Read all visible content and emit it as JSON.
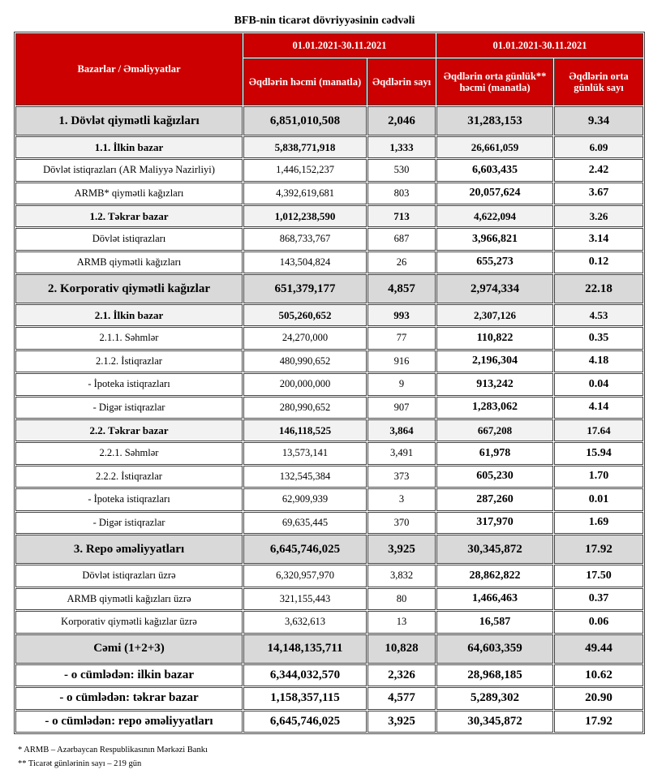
{
  "title": "BFB-nin ticarət dövriyyəsinin cədvəli",
  "header": {
    "corner": "Bazarlar / Əməliyyatlar",
    "period1": "01.01.2021-30.11.2021",
    "period2": "01.01.2021-30.11.2021",
    "columns": [
      "Əqdlərin həcmi (manatla)",
      "Əqdlərin sayı",
      "Əqdlərin orta günlük** həcmi (manatla)",
      "Əqdlərin orta günlük sayı"
    ]
  },
  "rows": [
    [
      "1. Dövlət qiymətli kağızları",
      "6,851,010,508",
      "2,046",
      "31,283,153",
      "9.34"
    ],
    [
      "1.1. İlkin bazar",
      "5,838,771,918",
      "1,333",
      "26,661,059",
      "6.09"
    ],
    [
      "Dövlət istiqrazları (AR Maliyyə Nazirliyi)",
      "1,446,152,237",
      "530",
      "6,603,435",
      "2.42"
    ],
    [
      "ARMB* qiymətli kağızları",
      "4,392,619,681",
      "803",
      "20,057,624",
      "3.67"
    ],
    [
      "1.2. Təkrar bazar",
      "1,012,238,590",
      "713",
      "4,622,094",
      "3.26"
    ],
    [
      "Dövlət istiqrazları",
      "868,733,767",
      "687",
      "3,966,821",
      "3.14"
    ],
    [
      "ARMB qiymətli kağızları",
      "143,504,824",
      "26",
      "655,273",
      "0.12"
    ],
    [
      "2. Korporativ qiymətli kağızlar",
      "651,379,177",
      "4,857",
      "2,974,334",
      "22.18"
    ],
    [
      "2.1. İlkin bazar",
      "505,260,652",
      "993",
      "2,307,126",
      "4.53"
    ],
    [
      "2.1.1. Səhmlər",
      "24,270,000",
      "77",
      "110,822",
      "0.35"
    ],
    [
      "2.1.2. İstiqrazlar",
      "480,990,652",
      "916",
      "2,196,304",
      "4.18"
    ],
    [
      "-  İpoteka istiqrazları",
      "200,000,000",
      "9",
      "913,242",
      "0.04"
    ],
    [
      "-  Digər istiqrazlar",
      "280,990,652",
      "907",
      "1,283,062",
      "4.14"
    ],
    [
      "2.2. Təkrar bazar",
      "146,118,525",
      "3,864",
      "667,208",
      "17.64"
    ],
    [
      "2.2.1. Səhmlər",
      "13,573,141",
      "3,491",
      "61,978",
      "15.94"
    ],
    [
      "2.2.2. İstiqrazlar",
      "132,545,384",
      "373",
      "605,230",
      "1.70"
    ],
    [
      "-  İpoteka istiqrazları",
      "62,909,939",
      "3",
      "287,260",
      "0.01"
    ],
    [
      "-  Digər istiqrazlar",
      "69,635,445",
      "370",
      "317,970",
      "1.69"
    ],
    [
      "3. Repo əməliyyatları",
      "6,645,746,025",
      "3,925",
      "30,345,872",
      "17.92"
    ],
    [
      "Dövlət istiqrazları üzrə",
      "6,320,957,970",
      "3,832",
      "28,862,822",
      "17.50"
    ],
    [
      "ARMB qiymətli kağızları üzrə",
      "321,155,443",
      "80",
      "1,466,463",
      "0.37"
    ],
    [
      "Korporativ qiymətli kağızlar üzrə",
      "3,632,613",
      "13",
      "16,587",
      "0.06"
    ],
    [
      "Cəmi (1+2+3)",
      "14,148,135,711",
      "10,828",
      "64,603,359",
      "49.44"
    ],
    [
      "-  o cümlədən: ilkin bazar",
      "6,344,032,570",
      "2,326",
      "28,968,185",
      "10.62"
    ],
    [
      "-  o cümlədən: təkrar bazar",
      "1,158,357,115",
      "4,577",
      "5,289,302",
      "20.90"
    ],
    [
      "-  o cümlədən: repo əməliyyatları",
      "6,645,746,025",
      "3,925",
      "30,345,872",
      "17.92"
    ]
  ],
  "footnotes": [
    "* ARMB – Azərbaycan Respublikasının Mərkəzi Bankı",
    "** Ticarət günlərinin sayı – 219 gün"
  ]
}
